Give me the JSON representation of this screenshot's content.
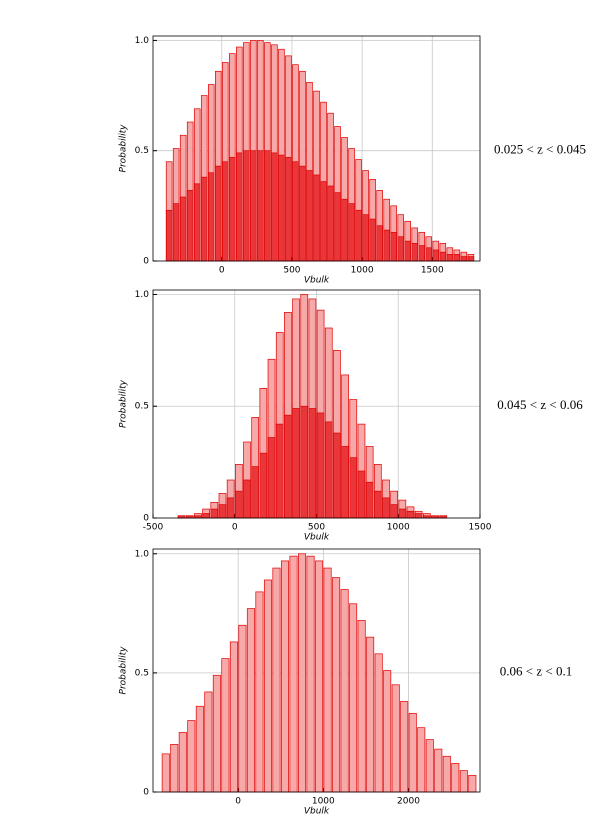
{
  "chart_data": [
    {
      "type": "histogram",
      "xlabel": "Vbulk",
      "ylabel": "Probability",
      "annotation": "0.025 < z < 0.045",
      "grid": true,
      "xlim": [
        -490,
        1840
      ],
      "ylim": [
        0,
        1.02
      ],
      "xticks": [
        0,
        500,
        1000,
        1500
      ],
      "yticks": [
        0,
        0.5,
        {
          "value": 1,
          "label": "1.0"
        }
      ],
      "bins": [
        -400,
        -350,
        -300,
        -250,
        -200,
        -150,
        -100,
        -50,
        0,
        50,
        100,
        150,
        200,
        250,
        300,
        350,
        400,
        450,
        500,
        550,
        600,
        650,
        700,
        750,
        800,
        850,
        900,
        950,
        1000,
        1050,
        1100,
        1150,
        1200,
        1250,
        1300,
        1350,
        1400,
        1450,
        1500,
        1550,
        1600,
        1650,
        1700,
        1750,
        1800
      ],
      "series": [
        {
          "color": "#f7a8a8",
          "values": [
            0.45,
            0.51,
            0.57,
            0.63,
            0.69,
            0.75,
            0.8,
            0.86,
            0.9,
            0.94,
            0.97,
            0.99,
            1,
            1,
            0.99,
            0.98,
            0.96,
            0.93,
            0.89,
            0.86,
            0.81,
            0.77,
            0.72,
            0.67,
            0.61,
            0.56,
            0.51,
            0.46,
            0.41,
            0.37,
            0.32,
            0.28,
            0.25,
            0.21,
            0.18,
            0.15,
            0.13,
            0.11,
            0.09,
            0.08,
            0.06,
            0.05,
            0.04,
            0.03
          ]
        },
        {
          "color": "#e8363a",
          "values": [
            0.23,
            0.26,
            0.29,
            0.32,
            0.35,
            0.38,
            0.4,
            0.43,
            0.45,
            0.47,
            0.49,
            0.5,
            0.5,
            0.5,
            0.5,
            0.49,
            0.48,
            0.47,
            0.45,
            0.43,
            0.41,
            0.39,
            0.36,
            0.34,
            0.31,
            0.28,
            0.26,
            0.23,
            0.21,
            0.19,
            0.16,
            0.14,
            0.13,
            0.11,
            0.09,
            0.08,
            0.07,
            0.06,
            0.05,
            0.04,
            0.03,
            0.03,
            0.02,
            0.02
          ]
        }
      ]
    },
    {
      "type": "histogram",
      "xlabel": "Vbulk",
      "ylabel": "Probability",
      "annotation": "0.045 < z < 0.06",
      "grid": true,
      "xlim": [
        -500,
        1500
      ],
      "ylim": [
        0,
        1.02
      ],
      "xticks": [
        -500,
        0,
        500,
        1000,
        1500
      ],
      "yticks": [
        0,
        0.5,
        {
          "value": 1,
          "label": "1.0"
        }
      ],
      "bins": [
        -500,
        -450,
        -400,
        -350,
        -300,
        -250,
        -200,
        -150,
        -100,
        -50,
        0,
        50,
        100,
        150,
        200,
        250,
        300,
        350,
        400,
        450,
        500,
        550,
        600,
        650,
        700,
        750,
        800,
        850,
        900,
        950,
        1000,
        1050,
        1100,
        1150,
        1200,
        1250,
        1300,
        1350,
        1400,
        1450,
        1500
      ],
      "series": [
        {
          "color": "#f7a8a8",
          "values": [
            0,
            0,
            0,
            0.01,
            0.01,
            0.02,
            0.04,
            0.07,
            0.11,
            0.17,
            0.24,
            0.34,
            0.45,
            0.58,
            0.71,
            0.83,
            0.92,
            0.98,
            1,
            0.98,
            0.93,
            0.85,
            0.75,
            0.64,
            0.53,
            0.42,
            0.32,
            0.24,
            0.17,
            0.12,
            0.08,
            0.05,
            0.03,
            0.02,
            0.01,
            0.01,
            0,
            0,
            0,
            0
          ]
        },
        {
          "color": "#e8363a",
          "values": [
            0,
            0,
            0,
            0.01,
            0.01,
            0.01,
            0.02,
            0.04,
            0.06,
            0.09,
            0.12,
            0.17,
            0.23,
            0.29,
            0.36,
            0.42,
            0.46,
            0.49,
            0.5,
            0.49,
            0.47,
            0.43,
            0.38,
            0.32,
            0.27,
            0.21,
            0.16,
            0.12,
            0.09,
            0.06,
            0.04,
            0.03,
            0.02,
            0.01,
            0.01,
            0.01,
            0,
            0,
            0,
            0
          ]
        }
      ]
    },
    {
      "type": "histogram",
      "xlabel": "Vbulk",
      "ylabel": "Probability",
      "annotation": "0.06 < z < 0.1",
      "grid": true,
      "xlim": [
        -1000,
        2840
      ],
      "ylim": [
        0,
        1.02
      ],
      "xticks": [
        0,
        1000,
        2000
      ],
      "yticks": [
        0,
        0.5,
        {
          "value": 1,
          "label": "1.0"
        }
      ],
      "bins": [
        -900,
        -800,
        -700,
        -600,
        -500,
        -400,
        -300,
        -200,
        -100,
        0,
        100,
        200,
        300,
        400,
        500,
        600,
        700,
        800,
        900,
        1000,
        1100,
        1200,
        1300,
        1400,
        1500,
        1600,
        1700,
        1800,
        1900,
        2000,
        2100,
        2200,
        2300,
        2400,
        2500,
        2600,
        2700,
        2800
      ],
      "series": [
        {
          "color": "#f7a8a8",
          "values": [
            0.16,
            0.2,
            0.25,
            0.3,
            0.36,
            0.42,
            0.49,
            0.56,
            0.63,
            0.7,
            0.77,
            0.84,
            0.89,
            0.94,
            0.97,
            0.99,
            1,
            0.99,
            0.97,
            0.94,
            0.9,
            0.85,
            0.79,
            0.72,
            0.65,
            0.58,
            0.51,
            0.45,
            0.38,
            0.33,
            0.27,
            0.22,
            0.18,
            0.15,
            0.12,
            0.09,
            0.07
          ]
        }
      ]
    }
  ]
}
